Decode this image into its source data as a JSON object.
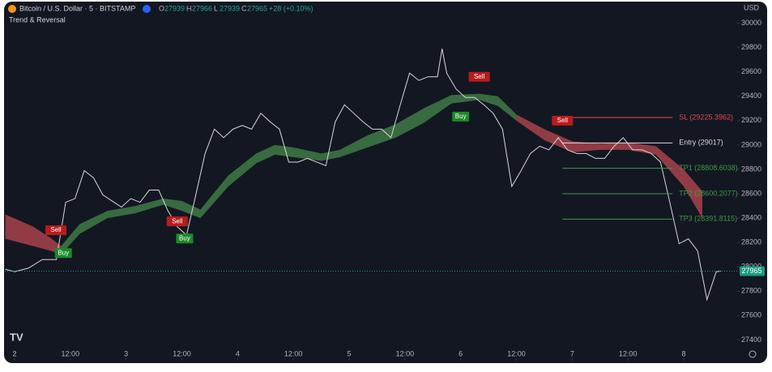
{
  "chart_data": {
    "type": "line",
    "title": "Bitcoin / U.S. Dollar · 5 · BITSTAMP",
    "indicator": "Trend & Reversal",
    "currency": "USD",
    "ohlc": [
      {
        "key": "O",
        "value": 27939
      },
      {
        "key": "H",
        "value": 27966
      },
      {
        "key": "L",
        "value": 27939
      },
      {
        "key": "C",
        "value": 27965
      }
    ],
    "change": {
      "value": 28,
      "label": "+28 (+0.10%)"
    },
    "xlim": [
      -2.09,
      155.5
    ],
    "ylim": [
      27230,
      30170
    ],
    "xticks": [
      {
        "value": 0,
        "label": "2"
      },
      {
        "value": 12,
        "label": "12:00"
      },
      {
        "value": 24,
        "label": "3"
      },
      {
        "value": 36,
        "label": "12:00"
      },
      {
        "value": 48,
        "label": "4"
      },
      {
        "value": 60,
        "label": "12:00"
      },
      {
        "value": 72,
        "label": "5"
      },
      {
        "value": 84,
        "label": "12:00"
      },
      {
        "value": 96,
        "label": "6"
      },
      {
        "value": 108,
        "label": "12:00"
      },
      {
        "value": 120,
        "label": "7"
      },
      {
        "value": 132,
        "label": "12:00"
      },
      {
        "value": 144,
        "label": "8"
      }
    ],
    "yticks": [
      27400,
      27600,
      27800,
      28000,
      28200,
      28400,
      28600,
      28800,
      29000,
      29200,
      29400,
      29600,
      29800,
      30000
    ],
    "series": [
      {
        "color": "#d8d8d8",
        "x": [
          -2,
          0,
          3,
          6,
          9,
          11,
          13,
          15,
          17,
          19,
          21,
          23,
          25,
          27,
          29,
          31,
          33,
          35,
          37,
          39,
          41,
          43,
          45,
          47,
          49,
          51,
          53,
          55,
          57,
          59,
          61,
          63,
          65,
          67,
          69,
          71,
          73,
          75,
          77,
          79,
          81,
          83,
          85,
          87,
          89,
          91,
          92,
          93,
          95,
          97,
          99,
          101,
          103,
          105,
          107,
          109,
          111,
          113,
          115,
          117,
          119,
          121,
          123,
          125,
          127,
          129,
          131,
          133,
          135,
          137,
          139,
          141,
          143,
          145,
          147,
          149,
          151,
          152
        ],
        "values": [
          27980,
          27960,
          27990,
          28060,
          28060,
          28530,
          28560,
          28790,
          28730,
          28590,
          28540,
          28490,
          28560,
          28530,
          28630,
          28630,
          28460,
          28330,
          28260,
          28590,
          28930,
          29130,
          29060,
          29130,
          29160,
          29130,
          29260,
          29190,
          29130,
          28860,
          28860,
          28890,
          28860,
          28830,
          29190,
          29330,
          29260,
          29190,
          29130,
          29130,
          29060,
          29330,
          29590,
          29530,
          29560,
          29560,
          29790,
          29590,
          29460,
          29390,
          29390,
          29330,
          29260,
          29130,
          28660,
          28790,
          28930,
          28990,
          28960,
          29060,
          28960,
          28930,
          28930,
          28890,
          28890,
          28990,
          29060,
          28960,
          28960,
          28930,
          28860,
          28530,
          28190,
          28230,
          28130,
          27730,
          27960,
          27965
        ]
      }
    ],
    "ribbon": [
      {
        "color": "#a8434b",
        "x": [
          -2,
          4,
          8,
          10
        ],
        "upper": [
          28430,
          28330,
          28230,
          28170
        ],
        "lower": [
          28230,
          28170,
          28130,
          28100
        ]
      },
      {
        "color": "#3f7a45",
        "x": [
          10,
          14,
          20,
          26,
          32,
          36,
          40,
          46,
          52,
          56,
          60,
          66,
          70,
          76,
          82,
          88,
          94,
          100,
          104,
          108
        ],
        "upper": [
          28170,
          28350,
          28460,
          28500,
          28560,
          28540,
          28470,
          28750,
          28930,
          29000,
          28980,
          28930,
          28960,
          29080,
          29170,
          29300,
          29410,
          29420,
          29400,
          29250
        ],
        "lower": [
          28100,
          28270,
          28400,
          28440,
          28510,
          28460,
          28400,
          28660,
          28850,
          28920,
          28900,
          28870,
          28900,
          28980,
          29060,
          29180,
          29340,
          29370,
          29320,
          29200
        ]
      },
      {
        "color": "#a8434b",
        "x": [
          108,
          114,
          120,
          126,
          132,
          138,
          144,
          148
        ],
        "upper": [
          29250,
          29130,
          29030,
          29010,
          29020,
          28990,
          28800,
          28620
        ],
        "lower": [
          29200,
          29040,
          28940,
          28960,
          28960,
          28920,
          28660,
          28400
        ]
      }
    ],
    "signals": [
      {
        "label": "Sell",
        "x": 8.9,
        "price": 28300,
        "color": "#b71c1c"
      },
      {
        "label": "Buy",
        "x": 10.5,
        "price": 28113,
        "color": "#1b8a2a"
      },
      {
        "label": "Sell",
        "x": 35,
        "price": 28373,
        "color": "#b71c1c"
      },
      {
        "label": "Buy",
        "x": 36.6,
        "price": 28233,
        "color": "#1b8a2a"
      },
      {
        "label": "Buy",
        "x": 96,
        "price": 29233,
        "color": "#1b8a2a"
      },
      {
        "label": "Sell",
        "x": 100,
        "price": 29560,
        "color": "#b71c1c"
      },
      {
        "label": "Sell",
        "x": 117.9,
        "price": 29200,
        "color": "#b71c1c"
      }
    ],
    "levels": {
      "x": [
        117.9,
        141.6
      ],
      "lines": [
        {
          "label": "SL (29225.3962)",
          "value": 29225.3962,
          "color": "#e0484f"
        },
        {
          "label": "Entry (29017)",
          "value": 29017,
          "color": "#d8d8d8"
        },
        {
          "label": "TP1 (28808.6038)",
          "value": 28808.6038,
          "color": "#3f9a4a"
        },
        {
          "label": "TP2 (28600.2077)",
          "value": 28600.2077,
          "color": "#3f9a4a"
        },
        {
          "label": "TP3 (28391.8115)",
          "value": 28391.8115,
          "color": "#3f9a4a"
        }
      ]
    },
    "last_color": "#1a9c82"
  }
}
